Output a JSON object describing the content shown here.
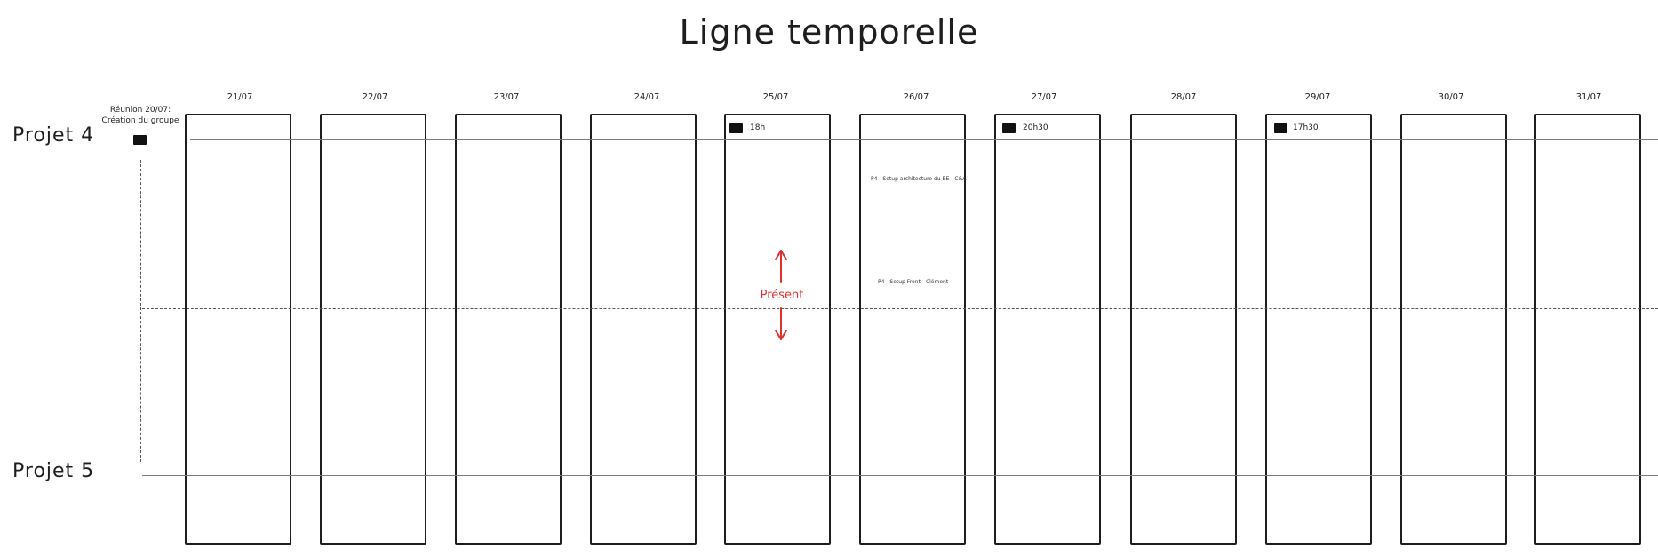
{
  "title": "Ligne temporelle",
  "rows": [
    {
      "label": "Projet 4"
    },
    {
      "label": "Projet 5"
    }
  ],
  "dates": [
    "21/07",
    "22/07",
    "23/07",
    "24/07",
    "25/07",
    "26/07",
    "27/07",
    "28/07",
    "29/07",
    "30/07",
    "31/07"
  ],
  "start_note": {
    "line1": "Réunion 20/07:",
    "line2": "Création du groupe"
  },
  "events": [
    {
      "date": "25/07",
      "time": "18h"
    },
    {
      "date": "27/07",
      "time": "20h30"
    },
    {
      "date": "29/07",
      "time": "17h30"
    }
  ],
  "notes": [
    {
      "text": "P4 - Setup architecture du BE - C&A"
    },
    {
      "text": "P4 - Setup Front - Clément"
    }
  ],
  "present_label": "Présent",
  "colors": {
    "stroke": "#1e1e1e",
    "present": "#e03131"
  }
}
